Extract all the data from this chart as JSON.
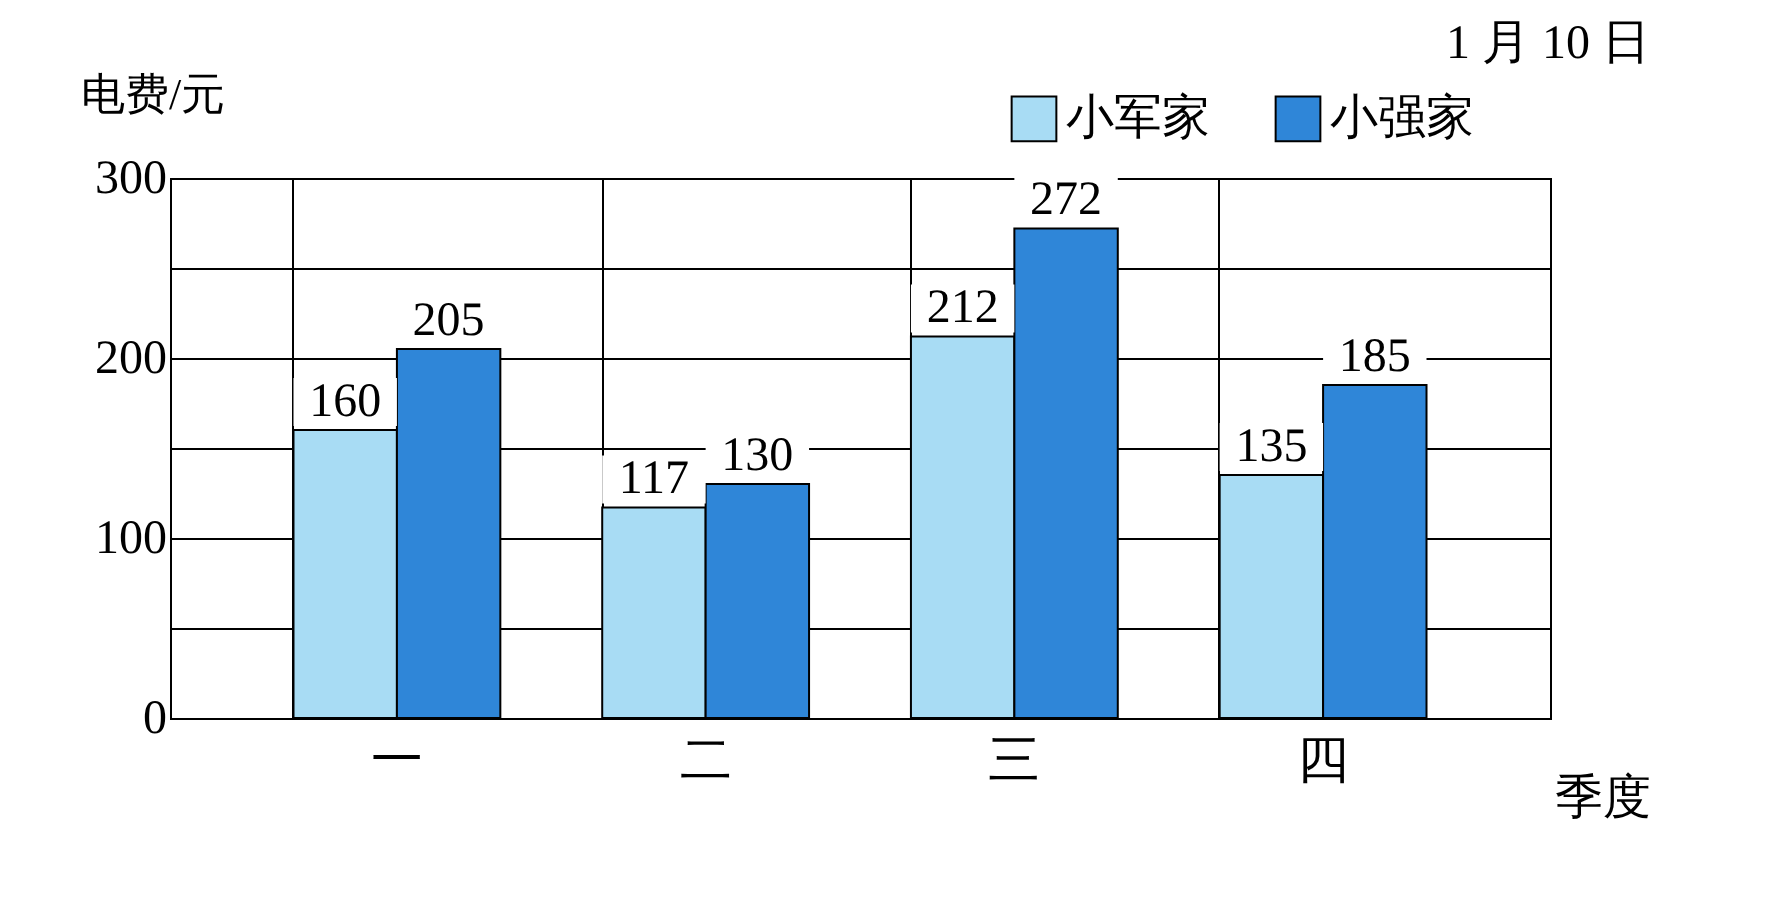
{
  "chart_data": {
    "type": "bar",
    "xlabel": "季度",
    "ylabel": "电费/元",
    "annotations": [
      "1 月 10 日"
    ],
    "categories": [
      "一",
      "二",
      "三",
      "四"
    ],
    "series": [
      {
        "name": "小军家",
        "color": "#a8dcf4",
        "values": [
          160,
          117,
          212,
          135
        ]
      },
      {
        "name": "小强家",
        "color": "#2f86d8",
        "values": [
          205,
          130,
          272,
          185
        ]
      }
    ],
    "ylim": [
      0,
      300
    ],
    "yticks": [
      0,
      {
        "value": 50,
        "label": null
      },
      100,
      {
        "value": 150,
        "label": null
      },
      200,
      {
        "value": 250,
        "label": null
      },
      300
    ],
    "grid": true,
    "legend": "top right",
    "data_labels": true
  }
}
